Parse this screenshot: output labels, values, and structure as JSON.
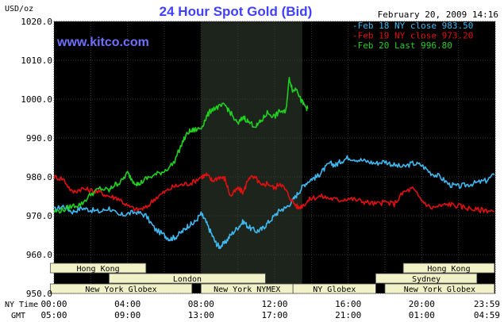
{
  "title": "24 Hour Spot Gold (Bid)",
  "unit_label": "USD/oz",
  "date_label": "February 20, 2009 14:16",
  "watermark": "www.kitco.com",
  "row_labels": {
    "ny_time": "NY Time",
    "gmt": "GMT"
  },
  "colors": {
    "background": "#000000",
    "title": "#4040ff",
    "watermark": "#7070ff",
    "feb18": "#40b8f0",
    "feb19": "#e01010",
    "feb20": "#20d020",
    "session_fill": "#f2f2c8",
    "shade": "#1c241c"
  },
  "sessions": [
    {
      "name": "Hong Kong",
      "start_hour": -0.2,
      "end_hour": 5.0,
      "row": 0
    },
    {
      "name": "London",
      "start_hour": 3.0,
      "end_hour": 11.5,
      "row": 1
    },
    {
      "name": "New York Globex",
      "start_hour": -0.2,
      "end_hour": 7.5,
      "row": 2
    },
    {
      "name": "New York NYMEX",
      "start_hour": 8.0,
      "end_hour": 13.0,
      "row": 2
    },
    {
      "name": "NY Globex",
      "start_hour": 13.0,
      "end_hour": 17.5,
      "row": 2
    },
    {
      "name": "Hong Kong",
      "start_hour": 19.0,
      "end_hour": 23.95,
      "row": 0
    },
    {
      "name": "Sydney",
      "start_hour": 17.5,
      "end_hour": 23.0,
      "row": 1
    },
    {
      "name": "New York Globex",
      "start_hour": 18.0,
      "end_hour": 23.95,
      "row": 2
    }
  ],
  "chart_data": {
    "type": "line",
    "title": "24 Hour Spot Gold (Bid)",
    "ylabel": "USD/oz",
    "ylim": [
      950,
      1020
    ],
    "xlim": [
      0,
      24
    ],
    "y_ticks": [
      "1020.0",
      "1010.0",
      "1000.0",
      "990.0",
      "980.0",
      "970.0",
      "960.0",
      "950.0"
    ],
    "x_ticks_ny": [
      "00:00",
      "04:00",
      "08:00",
      "12:00",
      "16:00",
      "20:00",
      "23:59"
    ],
    "x_ticks_gmt": [
      "05:00",
      "09:00",
      "13:00",
      "17:00",
      "21:00",
      "01:00",
      "04:59"
    ],
    "shaded_hours": [
      8.0,
      13.5
    ],
    "series": [
      {
        "name": "Feb 18 NY close 983.50",
        "x": [
          0,
          0.5,
          1,
          1.5,
          2,
          2.5,
          3,
          3.5,
          4,
          4.5,
          5,
          5.5,
          6,
          6.3,
          6.6,
          7,
          7.3,
          7.6,
          8,
          8.2,
          8.5,
          8.8,
          9,
          9.3,
          9.6,
          10,
          10.3,
          10.6,
          11,
          11.3,
          11.6,
          12,
          12.3,
          12.6,
          13,
          13.3,
          13.6,
          14,
          14.3,
          14.6,
          15,
          15.3,
          15.6,
          16,
          16.5,
          17,
          17.5,
          18,
          18.5,
          19,
          19.5,
          20,
          20.5,
          21,
          21.5,
          22,
          22.5,
          23,
          23.5,
          23.95
        ],
        "values": [
          971.5,
          972.5,
          971.0,
          972.0,
          971.5,
          971.0,
          972.0,
          970.0,
          970.5,
          971.0,
          970.0,
          966.5,
          965.0,
          964.0,
          964.5,
          966.0,
          967.5,
          968.0,
          970.5,
          969.0,
          966.0,
          963.0,
          962.0,
          963.0,
          965.0,
          967.0,
          968.5,
          967.0,
          966.0,
          966.5,
          968.0,
          970.0,
          971.5,
          972.0,
          974.0,
          976.0,
          978.0,
          979.5,
          980.0,
          981.5,
          983.5,
          983.0,
          984.0,
          985.0,
          984.5,
          984.0,
          983.5,
          984.0,
          983.0,
          982.5,
          983.5,
          983.0,
          981.0,
          980.0,
          978.0,
          977.5,
          978.0,
          978.5,
          979.0,
          980.5
        ]
      },
      {
        "name": "Feb 19 NY close 973.20",
        "x": [
          0,
          0.5,
          1,
          1.5,
          2,
          2.5,
          3,
          3.5,
          4,
          4.5,
          5,
          5.5,
          6,
          6.5,
          7,
          7.5,
          8,
          8.3,
          8.6,
          9,
          9.3,
          9.6,
          10,
          10.3,
          10.6,
          11,
          11.3,
          11.6,
          12,
          12.3,
          12.6,
          13,
          13.3,
          13.6,
          14,
          14.5,
          15,
          15.5,
          16,
          16.5,
          17,
          17.5,
          18,
          18.5,
          19,
          19.5,
          20,
          20.5,
          21,
          21.5,
          22,
          22.5,
          23,
          23.5,
          23.95
        ],
        "values": [
          980.0,
          979.5,
          976.0,
          977.0,
          976.5,
          976.0,
          975.0,
          974.5,
          972.5,
          971.5,
          972.0,
          974.5,
          976.0,
          977.5,
          978.0,
          978.5,
          980.0,
          980.5,
          979.0,
          980.0,
          979.5,
          975.0,
          977.0,
          976.0,
          980.0,
          979.5,
          977.5,
          978.5,
          977.0,
          978.5,
          976.5,
          973.5,
          972.0,
          973.0,
          974.5,
          975.0,
          974.5,
          974.0,
          974.5,
          974.0,
          973.5,
          973.0,
          973.5,
          973.0,
          976.0,
          977.0,
          974.0,
          972.0,
          972.5,
          973.0,
          972.5,
          972.0,
          971.5,
          971.5,
          971.0
        ]
      },
      {
        "name": "Feb 20 Last 996.80",
        "x": [
          0,
          0.5,
          1,
          1.5,
          2,
          2.5,
          3,
          3.3,
          3.6,
          4,
          4.3,
          4.6,
          5,
          5.5,
          6,
          6.5,
          7,
          7.3,
          7.6,
          8,
          8.3,
          8.6,
          9,
          9.3,
          9.6,
          10,
          10.3,
          10.6,
          11,
          11.3,
          11.6,
          12,
          12.3,
          12.6,
          12.8,
          13,
          13.2,
          13.4,
          13.6,
          13.8
        ],
        "values": [
          971.0,
          971.5,
          972.5,
          973.0,
          975.5,
          977.0,
          976.5,
          978.0,
          978.5,
          981.0,
          979.0,
          978.0,
          979.5,
          980.5,
          981.5,
          983.5,
          989.0,
          991.5,
          992.0,
          992.5,
          995.5,
          997.5,
          998.0,
          998.5,
          996.5,
          993.5,
          995.5,
          994.0,
          993.0,
          994.5,
          996.5,
          995.5,
          997.0,
          996.5,
          1005.5,
          1002.0,
          1003.0,
          1000.0,
          998.5,
          997.5
        ]
      }
    ]
  }
}
